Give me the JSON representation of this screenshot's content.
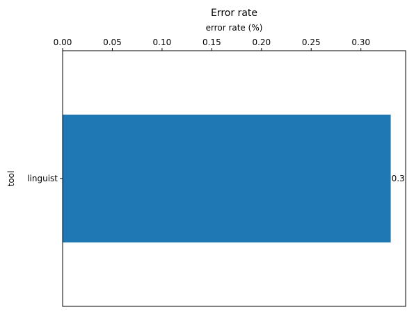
{
  "chart_data": {
    "type": "bar",
    "orientation": "horizontal",
    "title": "Error rate",
    "xlabel": "error rate (%)",
    "ylabel": "tool",
    "x_axis_position": "top",
    "xlim": [
      0,
      0.345
    ],
    "xticks": [
      0.0,
      0.05,
      0.1,
      0.15,
      0.2,
      0.25,
      0.3
    ],
    "xtick_labels": [
      "0.00",
      "0.05",
      "0.10",
      "0.15",
      "0.20",
      "0.25",
      "0.30"
    ],
    "categories": [
      "linguist"
    ],
    "values": [
      0.33
    ],
    "data_labels": [
      "0.3"
    ],
    "bar_color": "#1f77b4",
    "grid": false,
    "legend": "none"
  }
}
